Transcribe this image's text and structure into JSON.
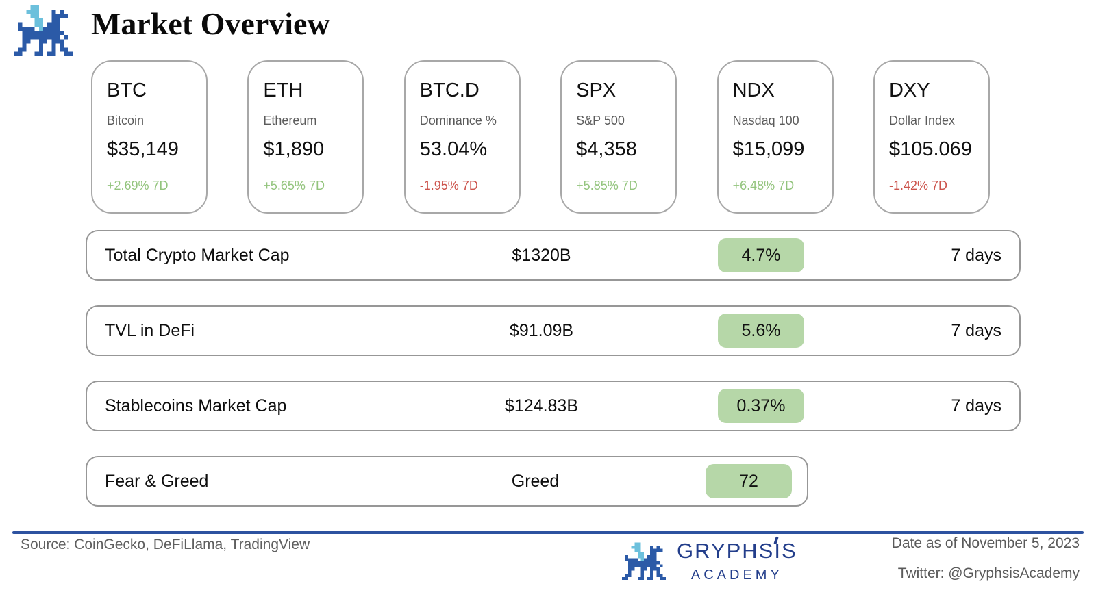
{
  "header": {
    "title": "Market Overview",
    "logo_icon": "gryphsis-pixel-dragon"
  },
  "cards": [
    {
      "ticker": "BTC",
      "name": "Bitcoin",
      "value": "$35,149",
      "change": "+2.69% 7D",
      "direction": "up"
    },
    {
      "ticker": "ETH",
      "name": "Ethereum",
      "value": "$1,890",
      "change": "+5.65% 7D",
      "direction": "up"
    },
    {
      "ticker": "BTC.D",
      "name": "Dominance %",
      "value": "53.04%",
      "change": "-1.95% 7D",
      "direction": "down"
    },
    {
      "ticker": "SPX",
      "name": "S&P 500",
      "value": "$4,358",
      "change": "+5.85% 7D",
      "direction": "up"
    },
    {
      "ticker": "NDX",
      "name": "Nasdaq 100",
      "value": "$15,099",
      "change": "+6.48% 7D",
      "direction": "up"
    },
    {
      "ticker": "DXY",
      "name": "Dollar Index",
      "value": "$105.069",
      "change": "-1.42% 7D",
      "direction": "down"
    }
  ],
  "metrics": [
    {
      "label": "Total Crypto Market Cap",
      "value": "$1320B",
      "badge": "4.7%",
      "period": "7 days"
    },
    {
      "label": "TVL in DeFi",
      "value": "$91.09B",
      "badge": "5.6%",
      "period": "7 days"
    },
    {
      "label": "Stablecoins Market Cap",
      "value": "$124.83B",
      "badge": "0.37%",
      "period": "7 days"
    },
    {
      "label": "Fear & Greed",
      "value": "Greed",
      "badge": "72",
      "period": ""
    }
  ],
  "colors": {
    "positive_green": "#93c47d",
    "negative_red": "#cc544c",
    "badge_green_bg": "#b6d7a8",
    "brand_navy": "#233e8b",
    "divider_blue": "#2d52a0",
    "dragon_body_blue": "#2b5aa7",
    "dragon_wing_lightblue": "#6cc0dc"
  },
  "footer": {
    "source": "Source: CoinGecko, DeFiLlama, TradingView",
    "brand_name": "GRYPHSIS",
    "brand_subtitle": "ACADEMY",
    "brand_icon": "gryphsis-pixel-dragon",
    "date": "Date as of November 5, 2023",
    "twitter": "Twitter: @GryphsisAcademy"
  }
}
